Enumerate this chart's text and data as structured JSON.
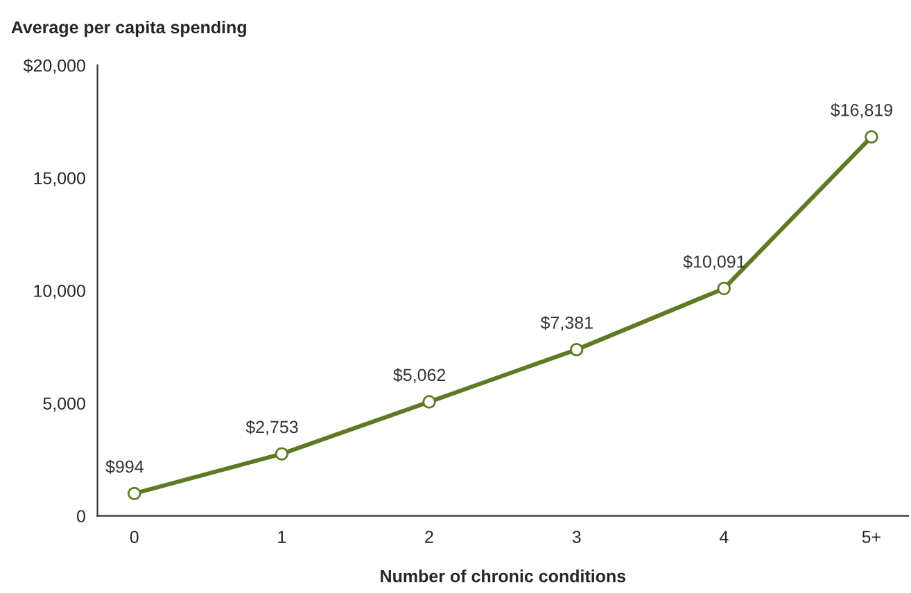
{
  "chart_data": {
    "type": "line",
    "title": "Average per capita spending",
    "xlabel": "Number of chronic conditions",
    "categories": [
      "0",
      "1",
      "2",
      "3",
      "4",
      "5+"
    ],
    "series": [
      {
        "color": "#5f7a24",
        "values": [
          994,
          2753,
          5062,
          7381,
          10091,
          16819
        ],
        "value_labels": [
          "$994",
          "$2,753",
          "$5,062",
          "$7,381",
          "$10,091",
          "$16,819"
        ]
      }
    ],
    "ylim": [
      0,
      20000
    ],
    "yticks": [
      0,
      {
        "value": 5000,
        "label": "5,000"
      },
      {
        "value": 10000,
        "label": "10,000"
      },
      {
        "value": 15000,
        "label": "15,000"
      },
      {
        "value": 20000,
        "label": "$20,000"
      }
    ],
    "marker": "circle",
    "line_style": "solid",
    "grid": false,
    "legend": false
  }
}
